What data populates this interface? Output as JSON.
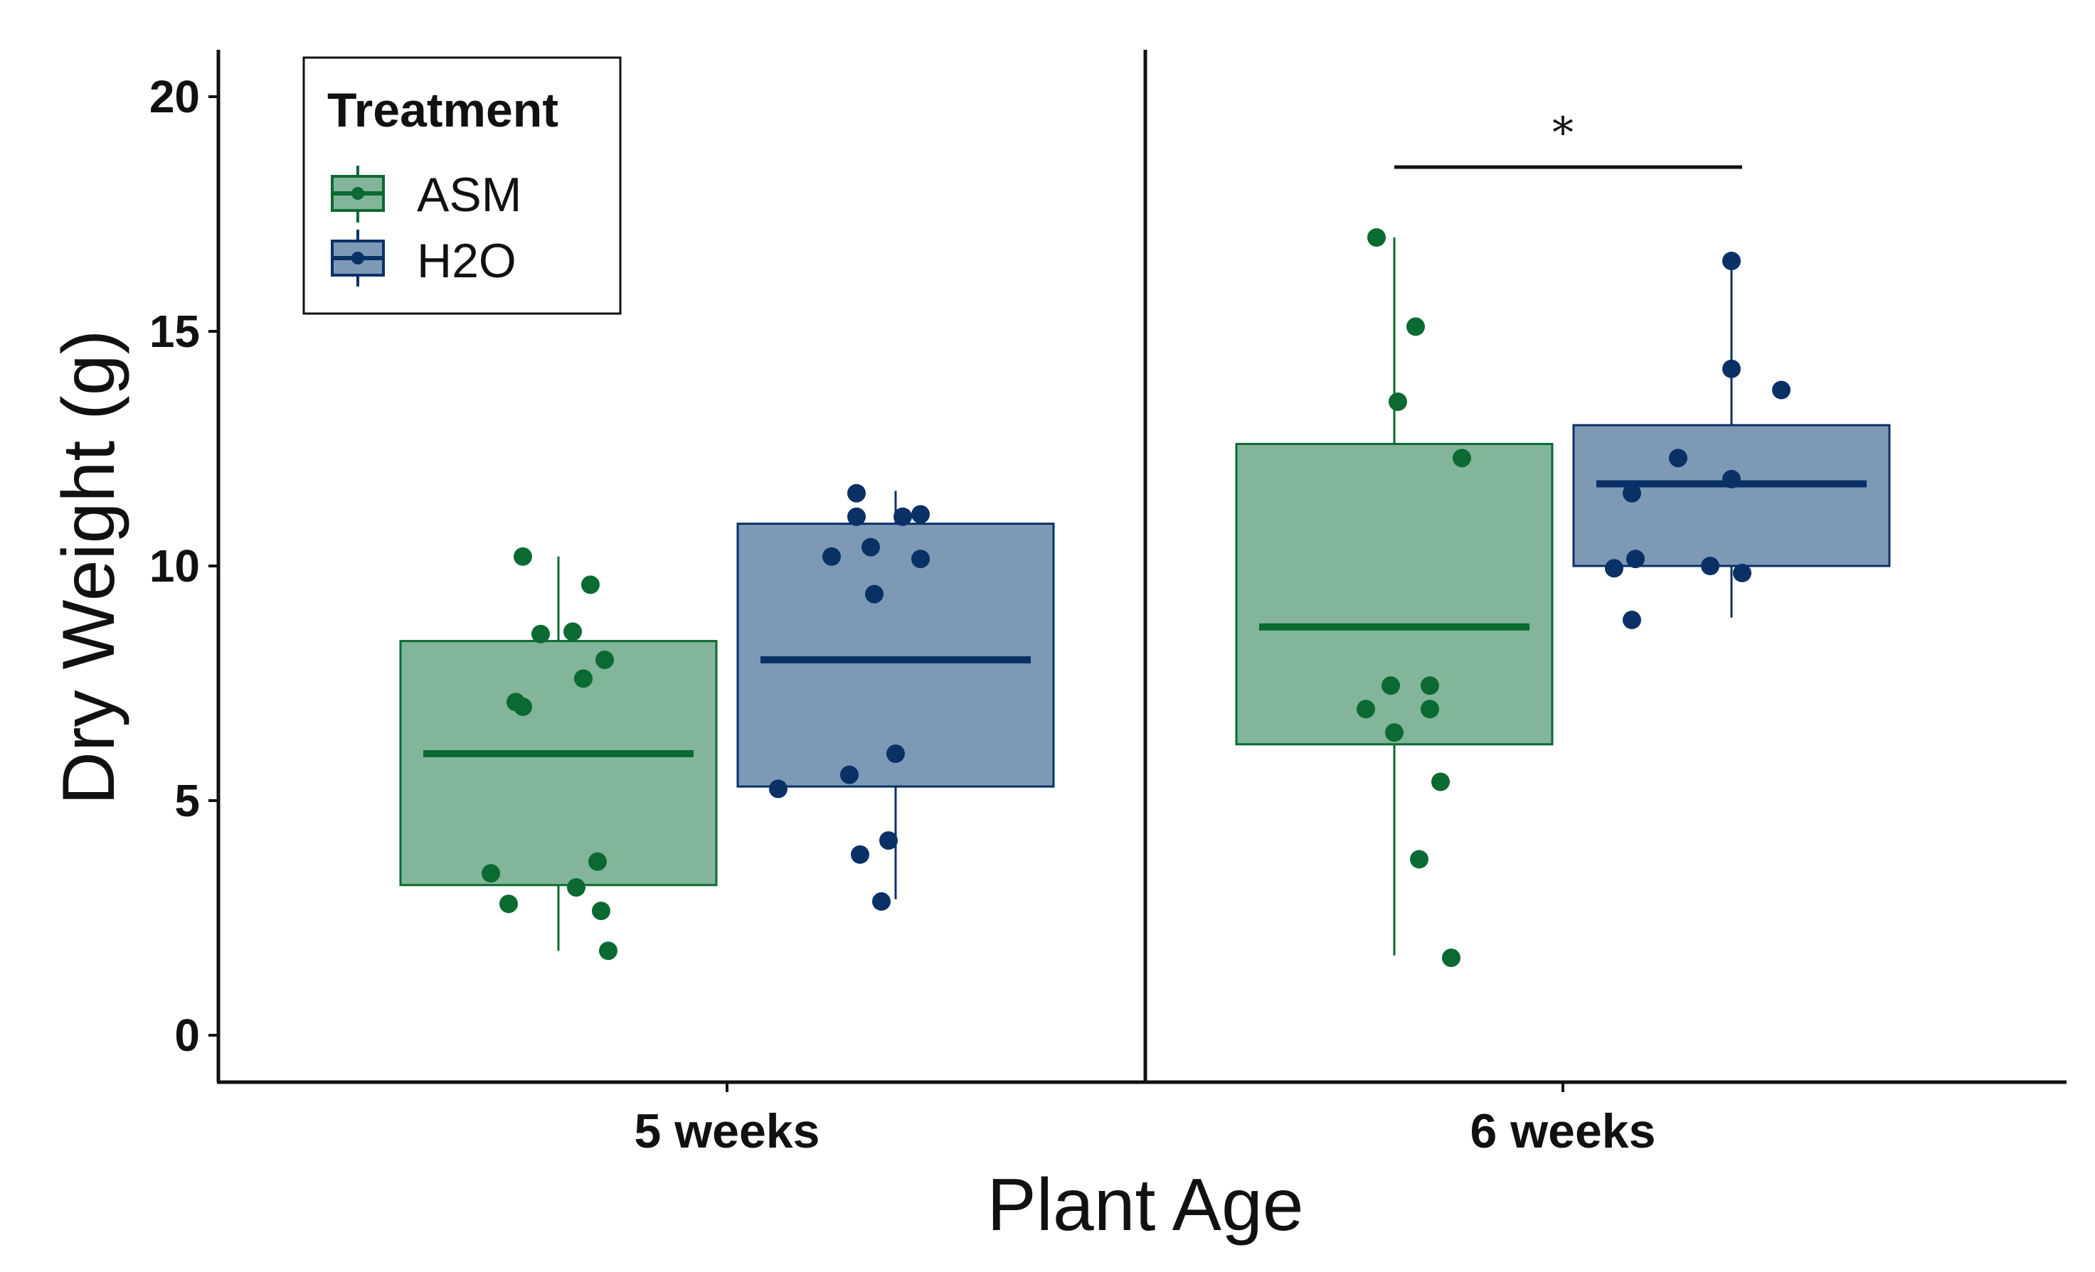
{
  "chart_data": {
    "type": "boxplot",
    "title": "",
    "xlabel": "Plant Age",
    "ylabel": "Dry Weight (g)",
    "ylim": [
      -1,
      21
    ],
    "yticks": [
      0,
      5,
      10,
      15,
      20
    ],
    "categories": [
      "5 weeks",
      "6 weeks"
    ],
    "legend": {
      "title": "Treatment",
      "position": "top-left"
    },
    "series": [
      {
        "name": "ASM",
        "fill": "#82b59a",
        "stroke": "#0b6a31",
        "boxes": [
          {
            "category": "5 weeks",
            "whisker_low": 1.8,
            "q1": 3.2,
            "median": 6.0,
            "q3": 8.4,
            "whisker_high": 10.2
          },
          {
            "category": "6 weeks",
            "whisker_low": 1.7,
            "q1": 6.2,
            "median": 8.7,
            "q3": 12.6,
            "whisker_high": 17.0
          }
        ],
        "points": [
          {
            "category": "5 weeks",
            "jitter": -0.1,
            "value": 10.2
          },
          {
            "category": "5 weeks",
            "jitter": 0.09,
            "value": 9.6
          },
          {
            "category": "5 weeks",
            "jitter": -0.05,
            "value": 8.55
          },
          {
            "category": "5 weeks",
            "jitter": 0.04,
            "value": 8.6
          },
          {
            "category": "5 weeks",
            "jitter": 0.13,
            "value": 8.0
          },
          {
            "category": "5 weeks",
            "jitter": 0.07,
            "value": 7.6
          },
          {
            "category": "5 weeks",
            "jitter": -0.12,
            "value": 7.1
          },
          {
            "category": "5 weeks",
            "jitter": -0.1,
            "value": 7.0
          },
          {
            "category": "5 weeks",
            "jitter": 0.11,
            "value": 3.7
          },
          {
            "category": "5 weeks",
            "jitter": -0.19,
            "value": 3.45
          },
          {
            "category": "5 weeks",
            "jitter": 0.05,
            "value": 3.15
          },
          {
            "category": "5 weeks",
            "jitter": -0.14,
            "value": 2.8
          },
          {
            "category": "5 weeks",
            "jitter": 0.12,
            "value": 2.65
          },
          {
            "category": "5 weeks",
            "jitter": 0.14,
            "value": 1.8
          },
          {
            "category": "6 weeks",
            "jitter": -0.05,
            "value": 17.0
          },
          {
            "category": "6 weeks",
            "jitter": 0.06,
            "value": 15.1
          },
          {
            "category": "6 weeks",
            "jitter": 0.01,
            "value": 13.5
          },
          {
            "category": "6 weeks",
            "jitter": 0.19,
            "value": 12.3
          },
          {
            "category": "6 weeks",
            "jitter": -0.01,
            "value": 7.45
          },
          {
            "category": "6 weeks",
            "jitter": 0.1,
            "value": 7.45
          },
          {
            "category": "6 weeks",
            "jitter": -0.08,
            "value": 6.95
          },
          {
            "category": "6 weeks",
            "jitter": 0.1,
            "value": 6.95
          },
          {
            "category": "6 weeks",
            "jitter": 0.0,
            "value": 6.45
          },
          {
            "category": "6 weeks",
            "jitter": 0.13,
            "value": 5.4
          },
          {
            "category": "6 weeks",
            "jitter": 0.07,
            "value": 3.75
          },
          {
            "category": "6 weeks",
            "jitter": 0.16,
            "value": 1.65
          }
        ]
      },
      {
        "name": "H2O",
        "fill": "#7d99b6",
        "stroke": "#0a3166",
        "boxes": [
          {
            "category": "5 weeks",
            "whisker_low": 2.9,
            "q1": 5.3,
            "median": 8.0,
            "q3": 10.9,
            "whisker_high": 11.6
          },
          {
            "category": "6 weeks",
            "whisker_low": 8.9,
            "q1": 10.0,
            "median": 11.75,
            "q3": 13.0,
            "whisker_high": 16.5
          }
        ],
        "points": [
          {
            "category": "5 weeks",
            "jitter": -0.11,
            "value": 11.55
          },
          {
            "category": "5 weeks",
            "jitter": -0.11,
            "value": 11.05
          },
          {
            "category": "5 weeks",
            "jitter": 0.02,
            "value": 11.05
          },
          {
            "category": "5 weeks",
            "jitter": 0.07,
            "value": 11.1
          },
          {
            "category": "5 weeks",
            "jitter": -0.07,
            "value": 10.4
          },
          {
            "category": "5 weeks",
            "jitter": -0.18,
            "value": 10.2
          },
          {
            "category": "5 weeks",
            "jitter": 0.07,
            "value": 10.15
          },
          {
            "category": "5 weeks",
            "jitter": -0.06,
            "value": 9.4
          },
          {
            "category": "5 weeks",
            "jitter": 0.0,
            "value": 6.0
          },
          {
            "category": "5 weeks",
            "jitter": -0.13,
            "value": 5.55
          },
          {
            "category": "5 weeks",
            "jitter": -0.33,
            "value": 5.25
          },
          {
            "category": "5 weeks",
            "jitter": -0.02,
            "value": 4.15
          },
          {
            "category": "5 weeks",
            "jitter": -0.1,
            "value": 3.85
          },
          {
            "category": "5 weeks",
            "jitter": -0.04,
            "value": 2.85
          },
          {
            "category": "6 weeks",
            "jitter": 0.0,
            "value": 16.5
          },
          {
            "category": "6 weeks",
            "jitter": 0.0,
            "value": 14.2
          },
          {
            "category": "6 weeks",
            "jitter": 0.14,
            "value": 13.75
          },
          {
            "category": "6 weeks",
            "jitter": -0.15,
            "value": 12.3
          },
          {
            "category": "6 weeks",
            "jitter": 0.0,
            "value": 11.85
          },
          {
            "category": "6 weeks",
            "jitter": -0.28,
            "value": 11.55
          },
          {
            "category": "6 weeks",
            "jitter": -0.27,
            "value": 10.15
          },
          {
            "category": "6 weeks",
            "jitter": -0.33,
            "value": 9.95
          },
          {
            "category": "6 weeks",
            "jitter": -0.06,
            "value": 10.0
          },
          {
            "category": "6 weeks",
            "jitter": 0.03,
            "value": 9.85
          },
          {
            "category": "6 weeks",
            "jitter": -0.28,
            "value": 8.85
          }
        ]
      }
    ],
    "annotations": [
      {
        "type": "significance",
        "text": "*",
        "category": "6 weeks",
        "value": 18.5
      }
    ]
  }
}
